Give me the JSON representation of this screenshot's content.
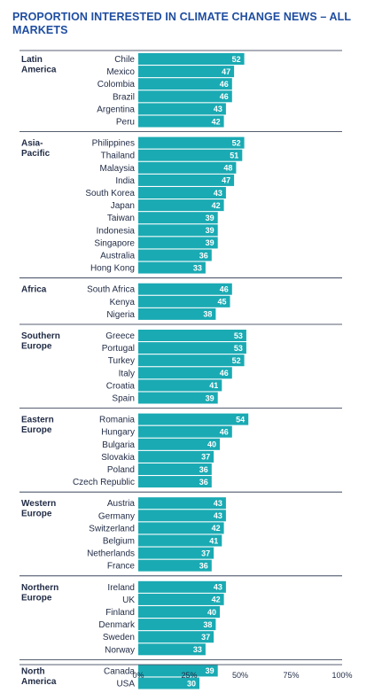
{
  "chart_data": {
    "type": "bar",
    "title": "PROPORTION INTERESTED IN CLIMATE CHANGE NEWS – ALL MARKETS",
    "xlim": [
      0,
      100
    ],
    "x_ticks": [
      "0%",
      "25%",
      "50%",
      "75%",
      "100%"
    ],
    "bar_color": "#1aaab3",
    "groups": [
      {
        "region": "Latin America",
        "markets": [
          {
            "name": "Chile",
            "value": 52
          },
          {
            "name": "Mexico",
            "value": 47
          },
          {
            "name": "Colombia",
            "value": 46
          },
          {
            "name": "Brazil",
            "value": 46
          },
          {
            "name": "Argentina",
            "value": 43
          },
          {
            "name": "Peru",
            "value": 42
          }
        ]
      },
      {
        "region": "Asia-Pacific",
        "markets": [
          {
            "name": "Philippines",
            "value": 52
          },
          {
            "name": "Thailand",
            "value": 51
          },
          {
            "name": "Malaysia",
            "value": 48
          },
          {
            "name": "India",
            "value": 47
          },
          {
            "name": "South Korea",
            "value": 43
          },
          {
            "name": "Japan",
            "value": 42
          },
          {
            "name": "Taiwan",
            "value": 39
          },
          {
            "name": "Indonesia",
            "value": 39
          },
          {
            "name": "Singapore",
            "value": 39
          },
          {
            "name": "Australia",
            "value": 36
          },
          {
            "name": "Hong Kong",
            "value": 33
          }
        ]
      },
      {
        "region": "Africa",
        "markets": [
          {
            "name": "South Africa",
            "value": 46
          },
          {
            "name": "Kenya",
            "value": 45
          },
          {
            "name": "Nigeria",
            "value": 38
          }
        ]
      },
      {
        "region": "Southern Europe",
        "markets": [
          {
            "name": "Greece",
            "value": 53
          },
          {
            "name": "Portugal",
            "value": 53
          },
          {
            "name": "Turkey",
            "value": 52
          },
          {
            "name": "Italy",
            "value": 46
          },
          {
            "name": "Croatia",
            "value": 41
          },
          {
            "name": "Spain",
            "value": 39
          }
        ]
      },
      {
        "region": "Eastern Europe",
        "markets": [
          {
            "name": "Romania",
            "value": 54
          },
          {
            "name": "Hungary",
            "value": 46
          },
          {
            "name": "Bulgaria",
            "value": 40
          },
          {
            "name": "Slovakia",
            "value": 37
          },
          {
            "name": "Poland",
            "value": 36
          },
          {
            "name": "Czech Republic",
            "value": 36
          }
        ]
      },
      {
        "region": "Western Europe",
        "markets": [
          {
            "name": "Austria",
            "value": 43
          },
          {
            "name": "Germany",
            "value": 43
          },
          {
            "name": "Switzerland",
            "value": 42
          },
          {
            "name": "Belgium",
            "value": 41
          },
          {
            "name": "Netherlands",
            "value": 37
          },
          {
            "name": "France",
            "value": 36
          }
        ]
      },
      {
        "region": "Northern Europe",
        "markets": [
          {
            "name": "Ireland",
            "value": 43
          },
          {
            "name": "UK",
            "value": 42
          },
          {
            "name": "Finland",
            "value": 40
          },
          {
            "name": "Denmark",
            "value": 38
          },
          {
            "name": "Sweden",
            "value": 37
          },
          {
            "name": "Norway",
            "value": 33
          }
        ]
      },
      {
        "region": "North America",
        "markets": [
          {
            "name": "Canada",
            "value": 39
          },
          {
            "name": "USA",
            "value": 30
          }
        ]
      }
    ]
  }
}
